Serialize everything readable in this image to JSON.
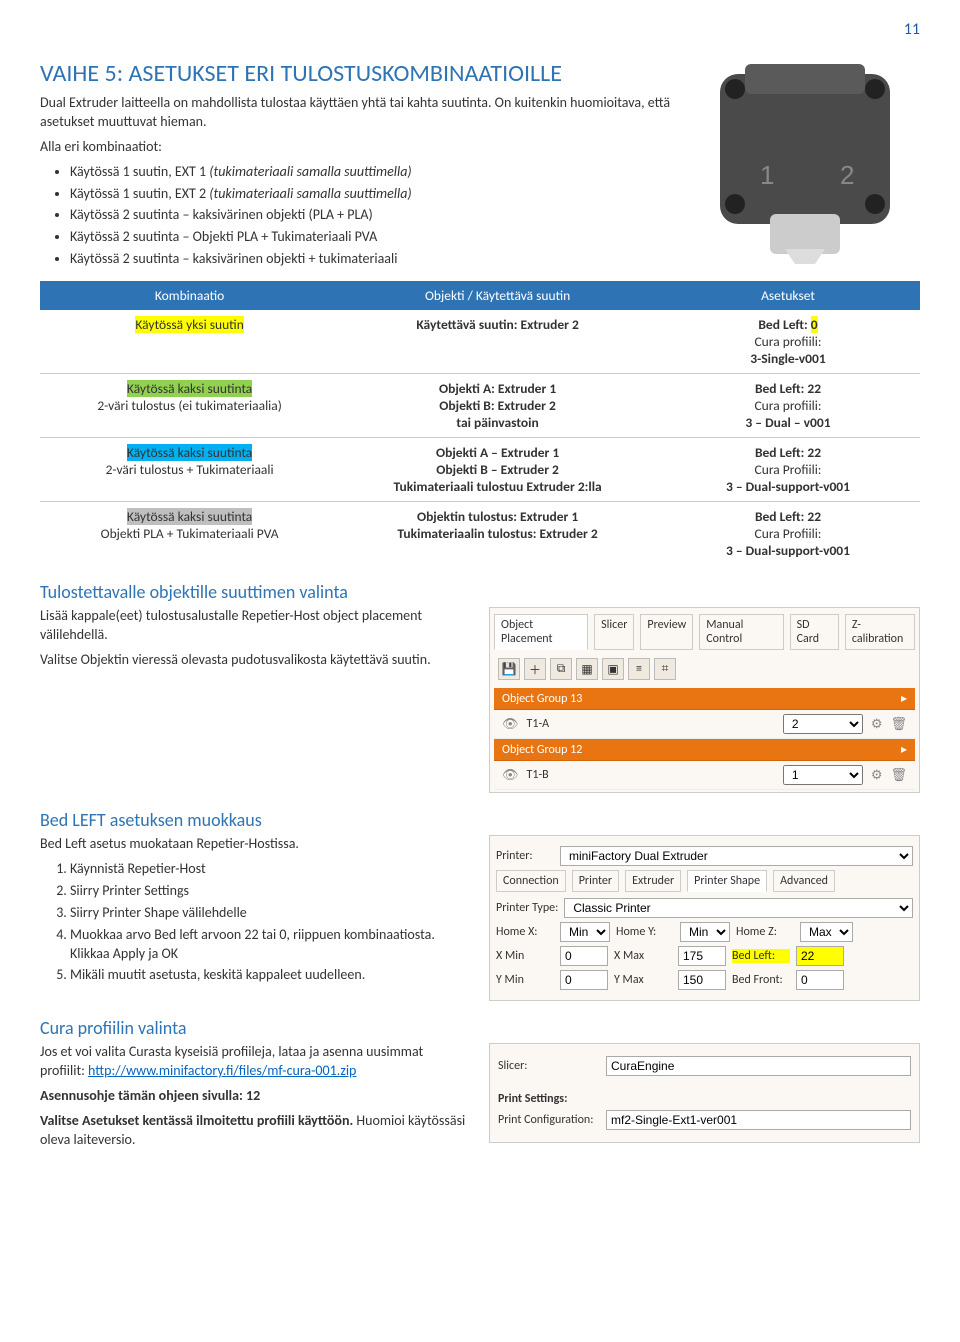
{
  "page_number": "11",
  "section_title": "VAIHE 5: ASETUKSET ERI TULOSTUSKOMBINAATIOILLE",
  "intro": "Dual Extruder laitteella on mahdollista tulostaa käyttäen yhtä tai kahta suutinta. On kuitenkin huomioitava, että asetukset muuttuvat hieman.",
  "combos_intro": "Alla eri kombinaatiot:",
  "bullets": [
    "Käytössä 1 suutin, EXT 1 (tukimateriaali samalla suuttimella)",
    "Käytössä 1 suutin, EXT 2 (tukimateriaali samalla suuttimella)",
    "Käytössä 2 suutinta – kaksivärinen objekti (PLA + PLA)",
    "Käytössä 2 suutinta – Objekti PLA + Tukimateriaali PVA",
    "Käytössä 2 suutinta – kaksivärinen objekti + tukimateriaali"
  ],
  "table": {
    "headers": [
      "Kombinaatio",
      "Objekti / Käytettävä suutin",
      "Asetukset"
    ],
    "rows": [
      {
        "col1_hl": "yellow",
        "col1_title": "Käytössä yksi suutin",
        "col1_sub": "",
        "col2_lines": [
          "Käytettävä suutin: Extruder 2"
        ],
        "col3_bed": "Bed Left: 0",
        "col3_bed_hl": "yellow",
        "col3_cura": "Cura profiili:",
        "col3_prof": "3-Single-v001"
      },
      {
        "col1_hl": "green",
        "col1_title": "Käytössä kaksi suutinta",
        "col1_sub": "2-väri tulostus (ei tukimateriaalia)",
        "col2_lines": [
          "Objekti A: Extruder 1",
          "Objekti B: Extruder 2",
          "tai päinvastoin"
        ],
        "col3_bed": "Bed Left: 22",
        "col3_cura": "Cura profiili:",
        "col3_prof": "3 – Dual – v001"
      },
      {
        "col1_hl": "cyan",
        "col1_title": "Käytössä kaksi suutinta",
        "col1_sub": "2-väri tulostus + Tukimateriaali",
        "col2_lines": [
          "Objekti A – Extruder 1",
          "Objekti B – Extruder 2",
          "Tukimateriaali tulostuu Extruder 2:lla"
        ],
        "col3_bed": "Bed Left: 22",
        "col3_cura": "Cura Profiili:",
        "col3_prof": "3 – Dual-support-v001"
      },
      {
        "col1_hl": "gray",
        "col1_title": "Käytössä kaksi suutinta",
        "col1_sub": "Objekti PLA + Tukimateriaali PVA",
        "col2_lines": [
          "Objektin tulostus: Extruder 1",
          "Tukimateriaalin tulostus: Extruder 2"
        ],
        "col3_bed": "Bed Left: 22",
        "col3_cura": "Cura Profiili:",
        "col3_prof": "3 – Dual-support-v001"
      }
    ]
  },
  "nozzle_section": {
    "title": "Tulostettavalle objektille suuttimen valinta",
    "p1": "Lisää kappale(eet) tulostusalustalle Repetier-Host object placement välilehdellä.",
    "p2": "Valitse Objektin vieressä olevasta pudotusvalikosta käytettävä suutin.",
    "tabs": [
      "Object Placement",
      "Slicer",
      "Preview",
      "Manual Control",
      "SD Card",
      "Z-calibration"
    ],
    "group1": "Object Group 13",
    "row1": "T1-A",
    "row1_val": "2",
    "group2": "Object Group 12",
    "row2": "T1-B",
    "row2_val": "1"
  },
  "bedleft_section": {
    "title": "Bed LEFT asetuksen muokkaus",
    "intro": "Bed Left asetus muokataan Repetier-Hostissa.",
    "steps": [
      "Käynnistä Repetier-Host",
      "Siirry Printer Settings",
      "Siirry Printer Shape välilehdelle",
      "Muokkaa arvo Bed left arvoon 22 tai 0, riippuen kombinaatiosta. Klikkaa Apply ja OK",
      "Mikäli muutit asetusta, keskitä kappaleet uudelleen."
    ],
    "printer_label": "Printer:",
    "printer_val": "miniFactory Dual Extruder",
    "tabs": [
      "Connection",
      "Printer",
      "Extruder",
      "Printer Shape",
      "Advanced"
    ],
    "ptype_label": "Printer Type:",
    "ptype_val": "Classic Printer",
    "hx_label": "Home X:",
    "hx_val": "Min",
    "hy_label": "Home Y:",
    "hy_val": "Min",
    "hz_label": "Home Z:",
    "hz_val": "Max",
    "xmin_l": "X Min",
    "xmin_v": "0",
    "xmax_l": "X Max",
    "xmax_v": "175",
    "bedleft_l": "Bed Left:",
    "bedleft_v": "22",
    "ymin_l": "Y Min",
    "ymin_v": "0",
    "ymax_l": "Y Max",
    "ymax_v": "150",
    "bedfront_l": "Bed Front:",
    "bedfront_v": "0"
  },
  "cura_section": {
    "title": "Cura profiilin valinta",
    "p1": "Jos et voi valita Curasta kyseisiä profiileja, lataa ja asenna uusimmat profiilit: ",
    "link": "http://www.minifactory.fi/files/mf-cura-001.zip",
    "p2": "Asennusohje tämän ohjeen sivulla: 12",
    "p3": "Valitse Asetukset kentässä ilmoitettu profiili käyttöön. Huomioi käytössäsi oleva laiteversio.",
    "slicer_l": "Slicer:",
    "slicer_v": "CuraEngine",
    "ps_l": "Print Settings:",
    "pc_l": "Print Configuration:",
    "pc_v": "mf2-Single-Ext1-ver001"
  }
}
